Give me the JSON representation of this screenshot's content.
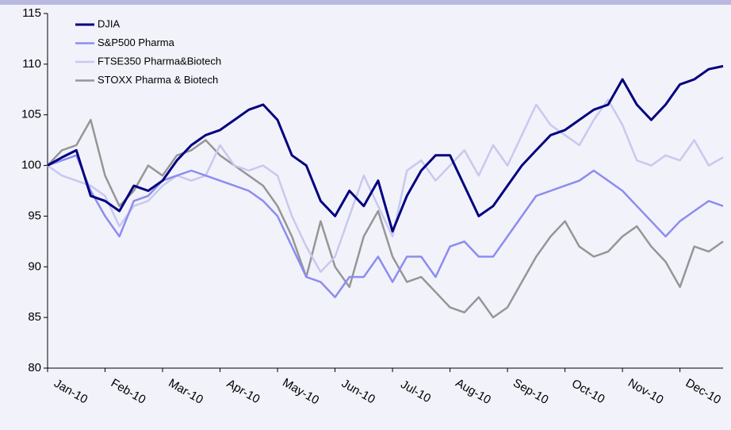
{
  "chart_data": {
    "type": "line",
    "categories": [
      "Jan-10",
      null,
      null,
      null,
      "Feb-10",
      null,
      null,
      null,
      "Mar-10",
      null,
      null,
      null,
      "Apr-10",
      null,
      null,
      null,
      "May-10",
      null,
      null,
      null,
      "Jun-10",
      null,
      null,
      null,
      "Jul-10",
      null,
      null,
      null,
      "Aug-10",
      null,
      null,
      null,
      "Sep-10",
      null,
      null,
      null,
      "Oct-10",
      null,
      null,
      null,
      "Nov-10",
      null,
      null,
      null,
      "Dec-10",
      null,
      null,
      null
    ],
    "series": [
      {
        "name": "DJIA",
        "color": "#000080",
        "linewidth": 3,
        "values": [
          100,
          100.8,
          101.5,
          97,
          96.5,
          95.5,
          98,
          97.5,
          98.5,
          100.5,
          102,
          103,
          103.5,
          104.5,
          105.5,
          106,
          104.5,
          101,
          100,
          96.5,
          95,
          97.5,
          96,
          98.5,
          93.5,
          97,
          99.5,
          101,
          101,
          98,
          95,
          96,
          98,
          100,
          101.5,
          103,
          103.5,
          104.5,
          105.5,
          106,
          108.5,
          106,
          104.5,
          106,
          108,
          108.5,
          109.5,
          109.8
        ]
      },
      {
        "name": "S&P500 Pharma",
        "color": "#8c8cf0",
        "linewidth": 2.5,
        "values": [
          100,
          100.5,
          101,
          97.5,
          95,
          93,
          96.5,
          97,
          98.5,
          99,
          99.5,
          99,
          98.5,
          98,
          97.5,
          96.5,
          95,
          92,
          89,
          88.5,
          87,
          89,
          89,
          91,
          88.5,
          91,
          91,
          89,
          92,
          92.5,
          91,
          91,
          93,
          95,
          97,
          97.5,
          98,
          98.5,
          99.5,
          98.5,
          97.5,
          96,
          94.5,
          93,
          94.5,
          95.5,
          96.5,
          96
        ]
      },
      {
        "name": "FTSE350 Pharma&Biotech",
        "color": "#c8c8f0",
        "linewidth": 2.5,
        "values": [
          100,
          99,
          98.5,
          98,
          97,
          94,
          96,
          96.5,
          98,
          99,
          98.5,
          99,
          102,
          100,
          99.5,
          100,
          99,
          95,
          92,
          89.5,
          91,
          95,
          99,
          96,
          93,
          99.5,
          100.5,
          98.5,
          100,
          101.5,
          99,
          102,
          100,
          103,
          106,
          104,
          103,
          102,
          104.5,
          106.5,
          104,
          100.5,
          100,
          101,
          100.5,
          102.5,
          100,
          100.8
        ]
      },
      {
        "name": "STOXX Pharma & Biotech",
        "color": "#969696",
        "linewidth": 2.5,
        "values": [
          100,
          101.5,
          102,
          104.5,
          99,
          96,
          97.5,
          100,
          99,
          101,
          101.5,
          102.5,
          101,
          100,
          99,
          98,
          96,
          93,
          89,
          94.5,
          90,
          88,
          93,
          95.5,
          91,
          88.5,
          89,
          87.5,
          86,
          85.5,
          87,
          85,
          86,
          88.5,
          91,
          93,
          94.5,
          92,
          91,
          91.5,
          93,
          94,
          92,
          90.5,
          88,
          92,
          91.5,
          92.5
        ]
      }
    ],
    "ylim": [
      80,
      115
    ],
    "yticks": [
      80,
      85,
      90,
      95,
      100,
      105,
      110,
      115
    ],
    "legend": "upper left"
  }
}
